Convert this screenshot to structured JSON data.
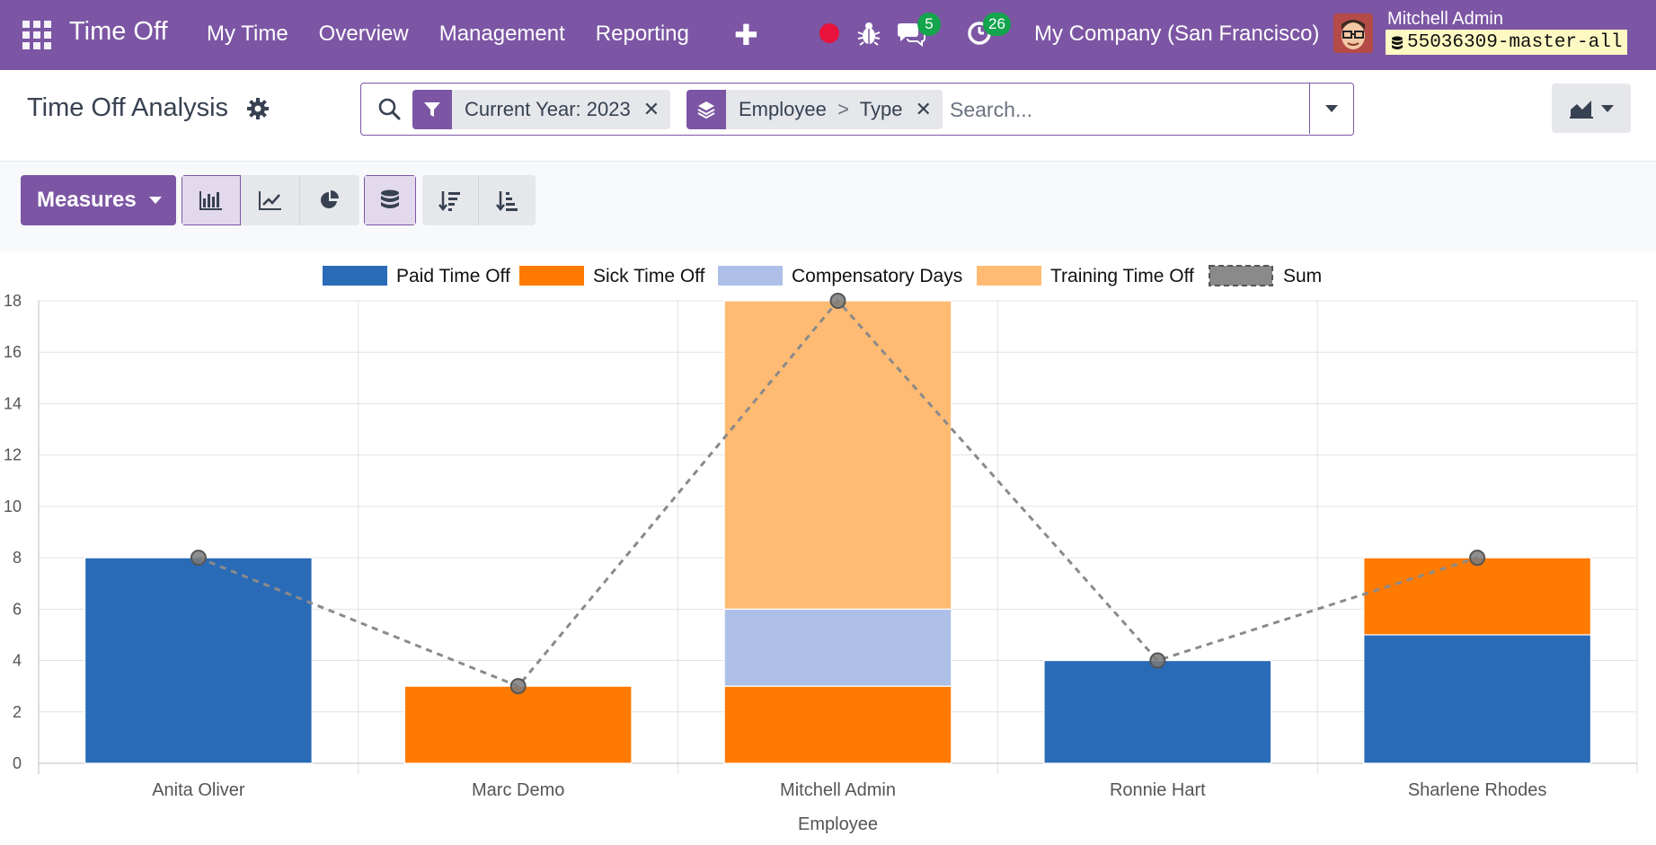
{
  "navbar": {
    "app_name": "Time Off",
    "menu": [
      "My Time",
      "Overview",
      "Management",
      "Reporting"
    ],
    "messages_count": "5",
    "activities_count": "26",
    "company": "My Company (San Francisco)",
    "user_name": "Mitchell Admin",
    "database": "55036309-master-all",
    "icons": [
      "apps-icon",
      "plus-icon",
      "record-icon",
      "bug-icon",
      "chat-icon",
      "clock-icon",
      "database-icon"
    ],
    "record_color": "#e8123c"
  },
  "control_panel": {
    "title": "Time Off Analysis",
    "search": {
      "facets": [
        {
          "kind": "filter",
          "label": "Current Year: 2023"
        },
        {
          "kind": "group_by",
          "parts": [
            "Employee",
            "Type"
          ]
        }
      ],
      "placeholder": "Search..."
    },
    "measures_label": "Measures",
    "graph_modes": [
      "bar",
      "line",
      "pie"
    ],
    "active_mode": "bar",
    "stacked": true
  },
  "colors": {
    "brand": "#7c56a4",
    "badge": "#14a44d"
  },
  "chart_data": {
    "type": "bar",
    "stacked": true,
    "categories": [
      "Anita Oliver",
      "Marc Demo",
      "Mitchell Admin",
      "Ronnie Hart",
      "Sharlene Rhodes"
    ],
    "series": [
      {
        "name": "Paid Time Off",
        "color": "#2a6bb7",
        "values": [
          8,
          0,
          0,
          4,
          5
        ]
      },
      {
        "name": "Sick Time Off",
        "color": "#ff7a00",
        "values": [
          0,
          3,
          3,
          0,
          3
        ]
      },
      {
        "name": "Compensatory Days",
        "color": "#aec0e8",
        "values": [
          0,
          0,
          3,
          0,
          0
        ]
      },
      {
        "name": "Training Time Off",
        "color": "#ffbb73",
        "values": [
          0,
          0,
          12,
          0,
          0
        ]
      }
    ],
    "sum": {
      "name": "Sum",
      "color": "#8a8a8a",
      "values": [
        8,
        3,
        18,
        4,
        8
      ]
    },
    "xlabel": "Employee",
    "ylabel": "",
    "ylim": [
      0,
      18
    ],
    "yticks": [
      0,
      2,
      4,
      6,
      8,
      10,
      12,
      14,
      16,
      18
    ],
    "grid": true,
    "legend": "top"
  }
}
